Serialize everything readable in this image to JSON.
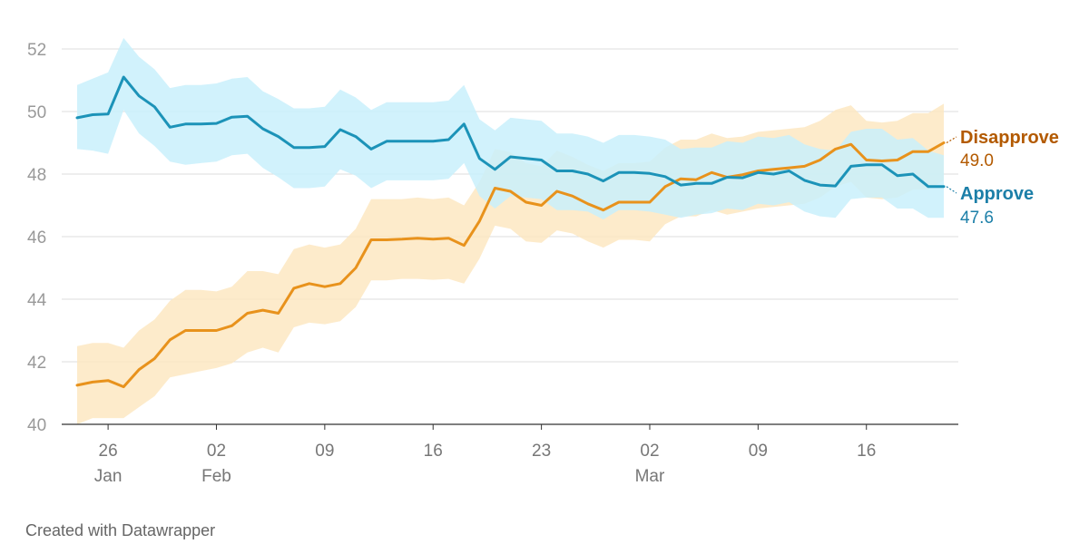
{
  "chart_data": {
    "type": "line",
    "credit": "Created with Datawrapper",
    "ylim": [
      40,
      52
    ],
    "y_ticks": [
      "40",
      "42",
      "44",
      "46",
      "48",
      "50",
      "52"
    ],
    "y_tick_values": [
      40,
      42,
      44,
      46,
      48,
      50,
      52
    ],
    "x_ticks": [
      {
        "day": "26",
        "month": "Jan",
        "index": 2
      },
      {
        "day": "02",
        "month": "Feb",
        "index": 9
      },
      {
        "day": "09",
        "month": "",
        "index": 16
      },
      {
        "day": "16",
        "month": "",
        "index": 23
      },
      {
        "day": "23",
        "month": "",
        "index": 30
      },
      {
        "day": "02",
        "month": "Mar",
        "index": 37
      },
      {
        "day": "09",
        "month": "",
        "index": 44
      },
      {
        "day": "16",
        "month": "",
        "index": 51
      }
    ],
    "x_count": 57,
    "series": [
      {
        "name": "Disapprove",
        "last_value_label": "49.0",
        "color": "#e8921c",
        "label_color": "#b35a00",
        "band_color": "#fde7c2",
        "values": [
          41.25,
          41.35,
          41.4,
          41.2,
          41.75,
          42.1,
          42.7,
          43.0,
          43.0,
          43.0,
          43.15,
          43.55,
          43.65,
          43.55,
          44.35,
          44.5,
          44.4,
          44.5,
          45.0,
          45.9,
          45.9,
          45.92,
          45.95,
          45.92,
          45.95,
          45.72,
          46.5,
          47.55,
          47.45,
          47.1,
          47.0,
          47.45,
          47.3,
          47.05,
          46.85,
          47.1,
          47.1,
          47.1,
          47.6,
          47.85,
          47.82,
          48.05,
          47.9,
          47.98,
          48.1,
          48.15,
          48.2,
          48.25,
          48.45,
          48.8,
          48.95,
          48.45,
          48.42,
          48.45,
          48.72,
          48.72,
          49.0
        ],
        "lower": [
          40.0,
          40.2,
          40.2,
          40.2,
          40.55,
          40.9,
          41.5,
          41.6,
          41.7,
          41.8,
          41.95,
          42.3,
          42.45,
          42.3,
          43.1,
          43.25,
          43.2,
          43.3,
          43.75,
          44.6,
          44.6,
          44.65,
          44.65,
          44.62,
          44.65,
          44.5,
          45.3,
          46.35,
          46.25,
          45.85,
          45.8,
          46.2,
          46.1,
          45.85,
          45.65,
          45.9,
          45.9,
          45.85,
          46.4,
          46.65,
          46.65,
          46.85,
          46.7,
          46.8,
          46.9,
          46.95,
          47.0,
          47.05,
          47.25,
          47.6,
          47.75,
          47.25,
          47.2,
          47.25,
          47.5,
          47.5,
          47.8
        ],
        "upper": [
          42.5,
          42.6,
          42.6,
          42.45,
          43.0,
          43.35,
          43.95,
          44.3,
          44.3,
          44.25,
          44.4,
          44.9,
          44.9,
          44.8,
          45.6,
          45.75,
          45.65,
          45.75,
          46.25,
          47.2,
          47.2,
          47.2,
          47.25,
          47.2,
          47.25,
          47.0,
          47.75,
          48.8,
          48.7,
          48.35,
          48.25,
          48.75,
          48.55,
          48.3,
          48.1,
          48.35,
          48.35,
          48.4,
          48.85,
          49.1,
          49.1,
          49.3,
          49.15,
          49.2,
          49.35,
          49.4,
          49.45,
          49.5,
          49.7,
          50.05,
          50.2,
          49.7,
          49.65,
          49.7,
          49.95,
          49.95,
          50.25
        ]
      },
      {
        "name": "Approve",
        "last_value_label": "47.6",
        "color": "#1c93b8",
        "label_color": "#1c7fa8",
        "band_color": "#c9f0fb",
        "values": [
          49.8,
          49.9,
          49.92,
          51.1,
          50.5,
          50.15,
          49.5,
          49.6,
          49.6,
          49.62,
          49.82,
          49.85,
          49.45,
          49.2,
          48.85,
          48.85,
          48.88,
          49.42,
          49.2,
          48.8,
          49.05,
          49.05,
          49.05,
          49.05,
          49.1,
          49.6,
          48.5,
          48.15,
          48.55,
          48.5,
          48.45,
          48.1,
          48.1,
          48.0,
          47.78,
          48.05,
          48.05,
          48.02,
          47.92,
          47.65,
          47.7,
          47.7,
          47.9,
          47.88,
          48.05,
          48.0,
          48.1,
          47.8,
          47.65,
          47.62,
          48.25,
          48.3,
          48.3,
          47.95,
          48.0,
          47.6,
          47.6
        ],
        "lower": [
          48.8,
          48.75,
          48.65,
          50.05,
          49.3,
          48.9,
          48.4,
          48.3,
          48.35,
          48.4,
          48.6,
          48.65,
          48.2,
          47.9,
          47.55,
          47.55,
          47.6,
          48.15,
          47.95,
          47.55,
          47.8,
          47.8,
          47.8,
          47.8,
          47.85,
          48.35,
          47.3,
          46.9,
          47.3,
          47.25,
          47.2,
          46.85,
          46.85,
          46.8,
          46.55,
          46.85,
          46.85,
          46.8,
          46.7,
          46.6,
          46.7,
          46.75,
          46.9,
          46.85,
          47.05,
          47.0,
          47.1,
          46.8,
          46.65,
          46.6,
          47.2,
          47.25,
          47.25,
          46.9,
          46.9,
          46.6,
          46.6
        ],
        "upper": [
          50.85,
          51.05,
          51.25,
          52.35,
          51.75,
          51.35,
          50.75,
          50.85,
          50.85,
          50.9,
          51.05,
          51.1,
          50.65,
          50.4,
          50.1,
          50.1,
          50.15,
          50.7,
          50.45,
          50.05,
          50.3,
          50.3,
          50.3,
          50.3,
          50.35,
          50.85,
          49.75,
          49.4,
          49.8,
          49.75,
          49.7,
          49.3,
          49.3,
          49.2,
          49.0,
          49.25,
          49.25,
          49.2,
          49.1,
          48.8,
          48.85,
          48.85,
          49.05,
          49.0,
          49.2,
          49.15,
          49.25,
          48.95,
          48.8,
          48.75,
          49.35,
          49.45,
          49.45,
          49.1,
          49.15,
          48.75,
          48.6
        ]
      }
    ]
  }
}
